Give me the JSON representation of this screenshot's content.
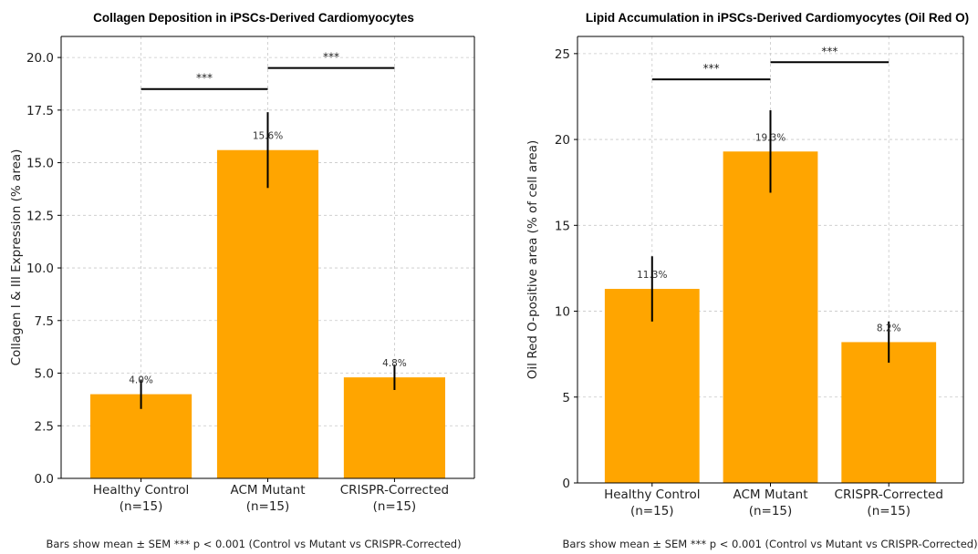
{
  "chart_data": [
    {
      "type": "bar",
      "title": "Collagen Deposition in iPSCs-Derived Cardiomyocytes",
      "xlabel": "",
      "ylabel": "Collagen I & III Expression (% area)",
      "categories": [
        [
          "Healthy Control",
          "(n=15)"
        ],
        [
          "ACM Mutant",
          "(n=15)"
        ],
        [
          "CRISPR-Corrected",
          "(n=15)"
        ]
      ],
      "values": [
        4.0,
        15.6,
        4.8
      ],
      "errors": [
        0.7,
        1.8,
        0.6
      ],
      "data_labels": [
        "4.0%",
        "15.6%",
        "4.8%"
      ],
      "ylim": [
        0,
        21
      ],
      "yticks": [
        0.0,
        2.5,
        5.0,
        7.5,
        10.0,
        12.5,
        15.0,
        17.5,
        20.0
      ],
      "ytick_labels": [
        "0.0",
        "2.5",
        "5.0",
        "7.5",
        "10.0",
        "12.5",
        "15.0",
        "17.5",
        "20.0"
      ],
      "bar_color": "#FFA500",
      "grid": true,
      "significance": [
        {
          "from": 0,
          "to": 1,
          "y": 18.5,
          "label": "***"
        },
        {
          "from": 1,
          "to": 2,
          "y": 19.5,
          "label": "***"
        }
      ],
      "footnote": "Bars show mean ± SEM *** p < 0.001 (Control vs Mutant vs CRISPR-Corrected)"
    },
    {
      "type": "bar",
      "title": "Lipid Accumulation in iPSCs-Derived Cardiomyocytes (Oil Red O)",
      "xlabel": "",
      "ylabel": "Oil Red O-positive area (% of cell area)",
      "categories": [
        [
          "Healthy Control",
          "(n=15)"
        ],
        [
          "ACM Mutant",
          "(n=15)"
        ],
        [
          "CRISPR-Corrected",
          "(n=15)"
        ]
      ],
      "values": [
        11.3,
        19.3,
        8.2
      ],
      "errors": [
        1.9,
        2.4,
        1.2
      ],
      "data_labels": [
        "11.3%",
        "19.3%",
        "8.2%"
      ],
      "ylim": [
        0,
        26
      ],
      "yticks": [
        0,
        5,
        10,
        15,
        20,
        25
      ],
      "ytick_labels": [
        "0",
        "5",
        "10",
        "15",
        "20",
        "25"
      ],
      "bar_color": "#FFA500",
      "grid": true,
      "significance": [
        {
          "from": 0,
          "to": 1,
          "y": 23.5,
          "label": "***"
        },
        {
          "from": 1,
          "to": 2,
          "y": 24.5,
          "label": "***"
        }
      ],
      "footnote": "Bars show mean ± SEM *** p < 0.001 (Control vs Mutant vs CRISPR-Corrected)"
    }
  ]
}
